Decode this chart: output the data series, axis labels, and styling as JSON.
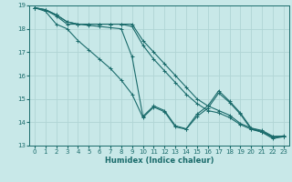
{
  "xlabel": "Humidex (Indice chaleur)",
  "background_color": "#c8e8e8",
  "grid_color": "#b0d4d4",
  "line_color": "#1a6b6b",
  "xlim": [
    -0.5,
    23.5
  ],
  "ylim": [
    13,
    19
  ],
  "xticks": [
    0,
    1,
    2,
    3,
    4,
    5,
    6,
    7,
    8,
    9,
    10,
    11,
    12,
    13,
    14,
    15,
    16,
    17,
    18,
    19,
    20,
    21,
    22,
    23
  ],
  "yticks": [
    13,
    14,
    15,
    16,
    17,
    18,
    19
  ],
  "series": [
    {
      "x": [
        0,
        1,
        2,
        3,
        4,
        5,
        6,
        7,
        8,
        9,
        10,
        11,
        12,
        13,
        14,
        15,
        16,
        17,
        18,
        19,
        20,
        21,
        22,
        23
      ],
      "y": [
        18.9,
        18.82,
        18.6,
        18.3,
        18.2,
        18.2,
        18.2,
        18.2,
        18.2,
        18.2,
        17.5,
        17.0,
        16.5,
        16.0,
        15.5,
        15.0,
        14.7,
        14.5,
        14.3,
        13.95,
        13.75,
        13.65,
        13.4,
        13.4
      ]
    },
    {
      "x": [
        0,
        1,
        2,
        3,
        4,
        5,
        6,
        7,
        8,
        9,
        10,
        11,
        12,
        13,
        14,
        15,
        16,
        17,
        18,
        19,
        20,
        21,
        22,
        23
      ],
      "y": [
        18.9,
        18.82,
        18.6,
        18.3,
        18.2,
        18.2,
        18.2,
        18.2,
        18.2,
        18.1,
        17.3,
        16.7,
        16.2,
        15.7,
        15.2,
        14.8,
        14.5,
        14.4,
        14.2,
        13.9,
        13.7,
        13.6,
        13.38,
        13.38
      ]
    },
    {
      "x": [
        0,
        1,
        2,
        3,
        4,
        5,
        6,
        7,
        8,
        9,
        10,
        11,
        12,
        13,
        14,
        15,
        16,
        17,
        18,
        19,
        20,
        21,
        22,
        23
      ],
      "y": [
        18.9,
        18.8,
        18.55,
        18.2,
        18.2,
        18.15,
        18.1,
        18.05,
        18.0,
        16.8,
        14.25,
        14.7,
        14.5,
        13.85,
        13.72,
        14.35,
        14.7,
        15.35,
        14.9,
        14.4,
        13.75,
        13.6,
        13.35,
        13.42
      ]
    },
    {
      "x": [
        0,
        1,
        2,
        3,
        4,
        5,
        6,
        7,
        8,
        9,
        10,
        11,
        12,
        13,
        14,
        15,
        16,
        17,
        18,
        19,
        20,
        21,
        22,
        23
      ],
      "y": [
        18.9,
        18.75,
        18.2,
        18.0,
        17.5,
        17.1,
        16.7,
        16.3,
        15.8,
        15.2,
        14.2,
        14.65,
        14.45,
        13.8,
        13.7,
        14.25,
        14.6,
        15.25,
        14.85,
        14.35,
        13.7,
        13.57,
        13.3,
        13.38
      ]
    }
  ]
}
